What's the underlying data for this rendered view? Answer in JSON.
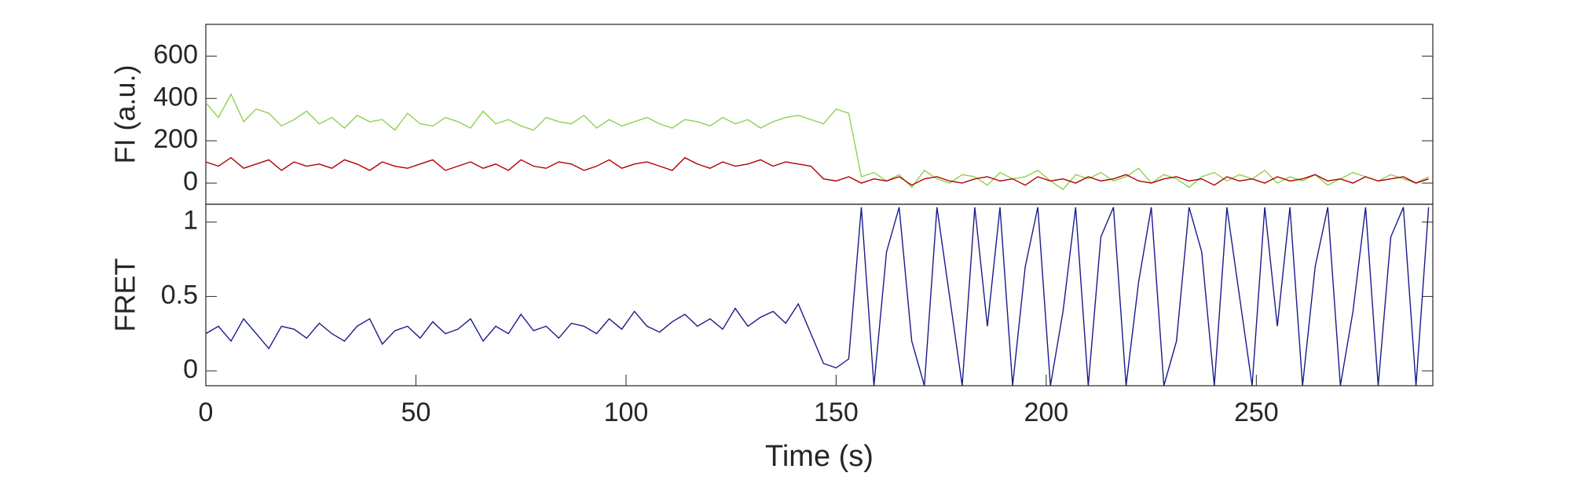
{
  "chart_data": [
    {
      "type": "line",
      "ylabel": "FI (a.u.)",
      "x": [
        0,
        3,
        6,
        9,
        12,
        15,
        18,
        21,
        24,
        27,
        30,
        33,
        36,
        39,
        42,
        45,
        48,
        51,
        54,
        57,
        60,
        63,
        66,
        69,
        72,
        75,
        78,
        81,
        84,
        87,
        90,
        93,
        96,
        99,
        102,
        105,
        108,
        111,
        114,
        117,
        120,
        123,
        126,
        129,
        132,
        135,
        138,
        141,
        144,
        147,
        150,
        153,
        156,
        159,
        162,
        165,
        168,
        171,
        174,
        177,
        180,
        183,
        186,
        189,
        192,
        195,
        198,
        201,
        204,
        207,
        210,
        213,
        216,
        219,
        222,
        225,
        228,
        231,
        234,
        237,
        240,
        243,
        246,
        249,
        252,
        255,
        258,
        261,
        264,
        267,
        270,
        273,
        276,
        279,
        282,
        285,
        288,
        291
      ],
      "series": [
        {
          "color": "#8fd14f",
          "values": [
            380,
            310,
            420,
            290,
            350,
            330,
            270,
            300,
            340,
            280,
            310,
            260,
            320,
            290,
            300,
            250,
            330,
            280,
            270,
            310,
            290,
            260,
            340,
            280,
            300,
            270,
            250,
            310,
            290,
            280,
            320,
            260,
            300,
            270,
            290,
            310,
            280,
            260,
            300,
            290,
            270,
            310,
            280,
            300,
            260,
            290,
            310,
            320,
            300,
            280,
            350,
            330,
            30,
            50,
            10,
            40,
            -20,
            60,
            20,
            0,
            40,
            30,
            -10,
            50,
            20,
            30,
            60,
            10,
            -30,
            40,
            20,
            50,
            10,
            30,
            70,
            0,
            40,
            20,
            -20,
            30,
            50,
            10,
            40,
            20,
            60,
            0,
            30,
            10,
            40,
            -10,
            20,
            50,
            30,
            10,
            40,
            20,
            0,
            30
          ]
        },
        {
          "color": "#b00000",
          "values": [
            100,
            80,
            120,
            70,
            90,
            110,
            60,
            100,
            80,
            90,
            70,
            110,
            90,
            60,
            100,
            80,
            70,
            90,
            110,
            60,
            80,
            100,
            70,
            90,
            60,
            110,
            80,
            70,
            100,
            90,
            60,
            80,
            110,
            70,
            90,
            100,
            80,
            60,
            120,
            90,
            70,
            100,
            80,
            90,
            110,
            80,
            100,
            90,
            80,
            20,
            10,
            30,
            0,
            20,
            10,
            30,
            -10,
            20,
            30,
            10,
            0,
            20,
            30,
            10,
            20,
            -10,
            30,
            10,
            20,
            0,
            30,
            10,
            20,
            40,
            10,
            0,
            20,
            30,
            10,
            20,
            -10,
            30,
            10,
            20,
            0,
            30,
            10,
            20,
            40,
            10,
            20,
            0,
            30,
            10,
            20,
            30,
            0,
            20
          ]
        }
      ],
      "xlim": [
        0,
        292
      ],
      "ylim": [
        -100,
        750
      ],
      "yticks": [
        0,
        200,
        400,
        600
      ]
    },
    {
      "type": "line",
      "ylabel": "FRET",
      "xlabel": "Time (s)",
      "x": [
        0,
        3,
        6,
        9,
        12,
        15,
        18,
        21,
        24,
        27,
        30,
        33,
        36,
        39,
        42,
        45,
        48,
        51,
        54,
        57,
        60,
        63,
        66,
        69,
        72,
        75,
        78,
        81,
        84,
        87,
        90,
        93,
        96,
        99,
        102,
        105,
        108,
        111,
        114,
        117,
        120,
        123,
        126,
        129,
        132,
        135,
        138,
        141,
        144,
        147,
        150,
        153,
        156,
        159,
        162,
        165,
        168,
        171,
        174,
        177,
        180,
        183,
        186,
        189,
        192,
        195,
        198,
        201,
        204,
        207,
        210,
        213,
        216,
        219,
        222,
        225,
        228,
        231,
        234,
        237,
        240,
        243,
        246,
        249,
        252,
        255,
        258,
        261,
        264,
        267,
        270,
        273,
        276,
        279,
        282,
        285,
        288,
        291
      ],
      "series": [
        {
          "color": "#1a1a8c",
          "values": [
            0.25,
            0.3,
            0.2,
            0.35,
            0.25,
            0.15,
            0.3,
            0.28,
            0.22,
            0.32,
            0.25,
            0.2,
            0.3,
            0.35,
            0.18,
            0.27,
            0.3,
            0.22,
            0.33,
            0.25,
            0.28,
            0.35,
            0.2,
            0.3,
            0.25,
            0.38,
            0.27,
            0.3,
            0.22,
            0.32,
            0.3,
            0.25,
            0.35,
            0.28,
            0.4,
            0.3,
            0.26,
            0.33,
            0.38,
            0.3,
            0.35,
            0.28,
            0.42,
            0.3,
            0.36,
            0.4,
            0.32,
            0.45,
            0.25,
            0.05,
            0.02,
            0.08,
            1.1,
            -0.1,
            0.8,
            1.1,
            0.2,
            -0.1,
            1.1,
            0.5,
            -0.1,
            1.1,
            0.3,
            1.1,
            -0.1,
            0.7,
            1.1,
            -0.1,
            0.4,
            1.1,
            -0.1,
            0.9,
            1.1,
            -0.1,
            0.6,
            1.1,
            -0.1,
            0.2,
            1.1,
            0.8,
            -0.1,
            1.1,
            0.5,
            -0.1,
            1.1,
            0.3,
            1.1,
            -0.1,
            0.7,
            1.1,
            -0.1,
            0.4,
            1.1,
            -0.1,
            0.9,
            1.1,
            -0.1,
            1.1
          ]
        }
      ],
      "xlim": [
        0,
        292
      ],
      "ylim": [
        -0.1,
        1.12
      ],
      "yticks": [
        0,
        0.5,
        1
      ],
      "xticks": [
        0,
        50,
        100,
        150,
        200,
        250
      ]
    }
  ]
}
